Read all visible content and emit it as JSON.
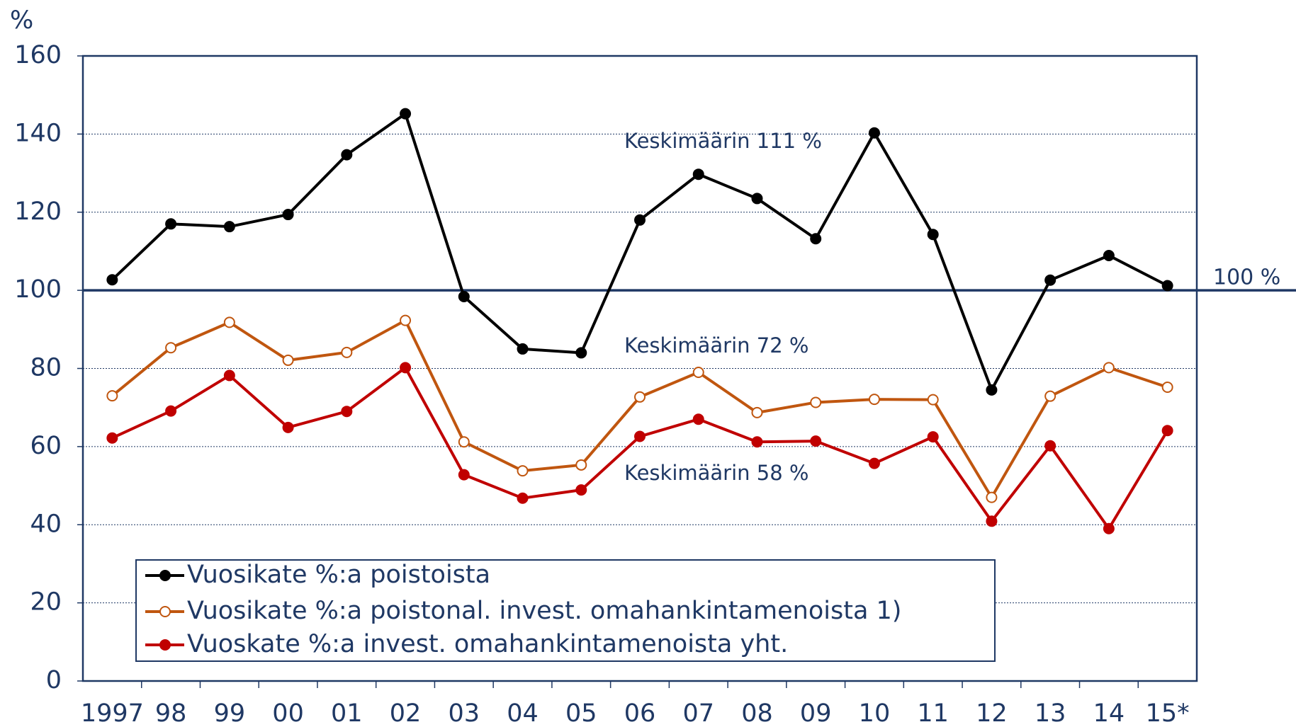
{
  "chart_data": {
    "type": "line",
    "y_label": "%",
    "categories": [
      "1997",
      "98",
      "99",
      "00",
      "01",
      "02",
      "03",
      "04",
      "05",
      "06",
      "07",
      "08",
      "09",
      "10",
      "11",
      "12",
      "13",
      "14",
      "15*"
    ],
    "series": [
      {
        "name": "Vuosikate %:a poistoista",
        "color": "#000000",
        "marker": "filled",
        "values": [
          102.7,
          117,
          116.3,
          119.4,
          134.7,
          145.2,
          98.4,
          85,
          84,
          118,
          129.7,
          123.5,
          113.2,
          140.3,
          114.3,
          74.5,
          102.6,
          108.9,
          101.2
        ]
      },
      {
        "name": "Vuosikate %:a poistonal. invest. omahankintamenoista 1)",
        "color": "#c0560f",
        "marker": "open",
        "values": [
          73,
          85.3,
          91.8,
          82.1,
          84.1,
          92.3,
          61.2,
          53.8,
          55.3,
          72.7,
          79,
          68.7,
          71.3,
          72.1,
          72,
          47,
          72.9,
          80.2,
          75.2
        ]
      },
      {
        "name": "Vuoskate %:a invest. omahankintamenoista yht.",
        "color": "#c00000",
        "marker": "filled",
        "values": [
          62.2,
          69.1,
          78.2,
          64.9,
          69,
          80.2,
          52.8,
          46.8,
          48.9,
          62.6,
          67,
          61.2,
          61.4,
          55.7,
          62.5,
          40.9,
          60.2,
          39,
          64.1
        ]
      }
    ],
    "annotations": [
      {
        "text": "Keskimäärin 111 %",
        "color": "#000000"
      },
      {
        "text": "Keskimäärin 72 %",
        "color": "#c0560f"
      },
      {
        "text": "Keskimäärin 58 %",
        "color": "#c00000"
      }
    ],
    "reference_line": {
      "value": 100,
      "label": "100 %",
      "color": "#1f3864"
    },
    "ylim": [
      0,
      160
    ],
    "yticks": [
      0,
      20,
      40,
      60,
      80,
      100,
      120,
      140,
      160
    ],
    "grid": true,
    "legend": "lower left"
  }
}
